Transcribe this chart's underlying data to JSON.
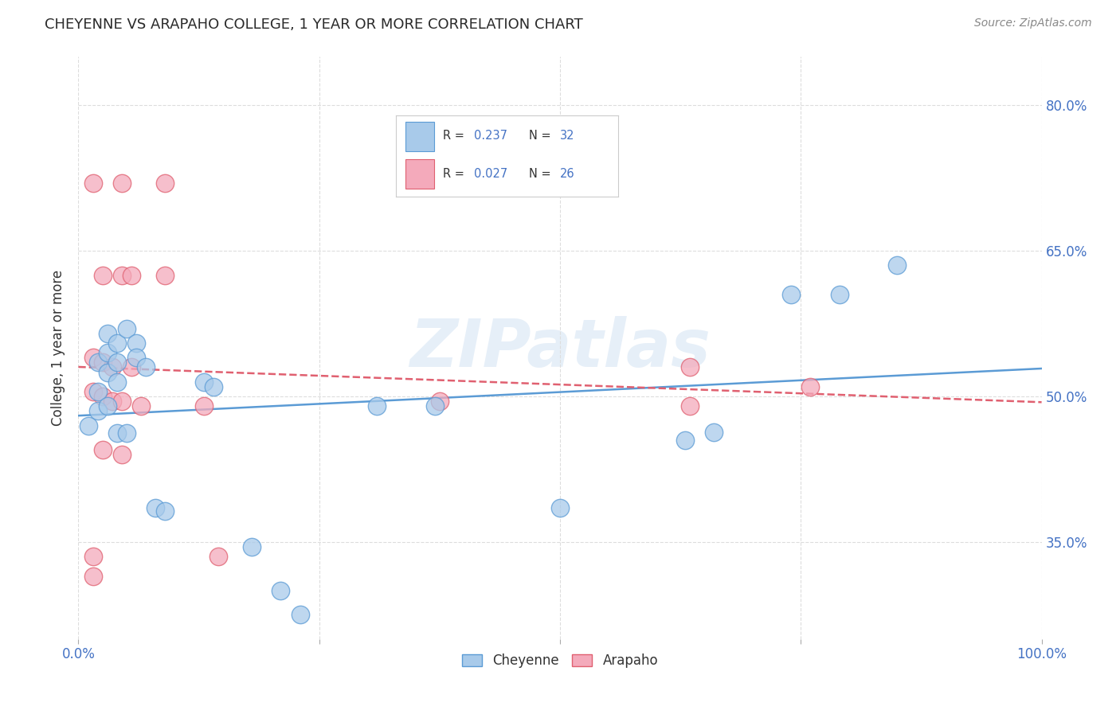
{
  "title": "CHEYENNE VS ARAPAHO COLLEGE, 1 YEAR OR MORE CORRELATION CHART",
  "source": "Source: ZipAtlas.com",
  "ylabel": "College, 1 year or more",
  "xlim": [
    0.0,
    1.0
  ],
  "ylim": [
    0.25,
    0.85
  ],
  "xticks": [
    0.0,
    0.25,
    0.5,
    0.75,
    1.0
  ],
  "xtick_labels": [
    "0.0%",
    "",
    "",
    "",
    "100.0%"
  ],
  "ytick_vals": [
    0.35,
    0.5,
    0.65,
    0.8
  ],
  "ytick_labels_right": [
    "35.0%",
    "50.0%",
    "65.0%",
    "80.0%"
  ],
  "cheyenne_R": "0.237",
  "cheyenne_N": "32",
  "arapaho_R": "0.027",
  "arapaho_N": "26",
  "cheyenne_color": "#A8CAEA",
  "arapaho_color": "#F4AABB",
  "line_cheyenne_color": "#5B9BD5",
  "line_arapaho_color": "#E06070",
  "label_color": "#4472C4",
  "text_color": "#333333",
  "cheyenne_scatter": [
    [
      0.01,
      0.47
    ],
    [
      0.02,
      0.535
    ],
    [
      0.02,
      0.505
    ],
    [
      0.02,
      0.485
    ],
    [
      0.03,
      0.565
    ],
    [
      0.03,
      0.545
    ],
    [
      0.03,
      0.525
    ],
    [
      0.03,
      0.49
    ],
    [
      0.04,
      0.555
    ],
    [
      0.04,
      0.535
    ],
    [
      0.04,
      0.515
    ],
    [
      0.04,
      0.462
    ],
    [
      0.05,
      0.57
    ],
    [
      0.05,
      0.462
    ],
    [
      0.06,
      0.555
    ],
    [
      0.06,
      0.54
    ],
    [
      0.07,
      0.53
    ],
    [
      0.08,
      0.385
    ],
    [
      0.09,
      0.382
    ],
    [
      0.13,
      0.515
    ],
    [
      0.14,
      0.51
    ],
    [
      0.18,
      0.345
    ],
    [
      0.21,
      0.3
    ],
    [
      0.23,
      0.275
    ],
    [
      0.31,
      0.49
    ],
    [
      0.37,
      0.49
    ],
    [
      0.5,
      0.385
    ],
    [
      0.63,
      0.455
    ],
    [
      0.66,
      0.463
    ],
    [
      0.74,
      0.605
    ],
    [
      0.79,
      0.605
    ],
    [
      0.85,
      0.635
    ]
  ],
  "arapaho_scatter": [
    [
      0.015,
      0.72
    ],
    [
      0.045,
      0.72
    ],
    [
      0.09,
      0.72
    ],
    [
      0.025,
      0.625
    ],
    [
      0.045,
      0.625
    ],
    [
      0.055,
      0.625
    ],
    [
      0.09,
      0.625
    ],
    [
      0.015,
      0.54
    ],
    [
      0.025,
      0.535
    ],
    [
      0.035,
      0.53
    ],
    [
      0.055,
      0.53
    ],
    [
      0.015,
      0.505
    ],
    [
      0.025,
      0.5
    ],
    [
      0.035,
      0.495
    ],
    [
      0.045,
      0.495
    ],
    [
      0.065,
      0.49
    ],
    [
      0.13,
      0.49
    ],
    [
      0.025,
      0.445
    ],
    [
      0.045,
      0.44
    ],
    [
      0.015,
      0.335
    ],
    [
      0.015,
      0.315
    ],
    [
      0.145,
      0.335
    ],
    [
      0.375,
      0.495
    ],
    [
      0.635,
      0.53
    ],
    [
      0.635,
      0.49
    ],
    [
      0.76,
      0.51
    ]
  ],
  "watermark": "ZIPatlas",
  "background_color": "#ffffff",
  "grid_color": "#dddddd"
}
